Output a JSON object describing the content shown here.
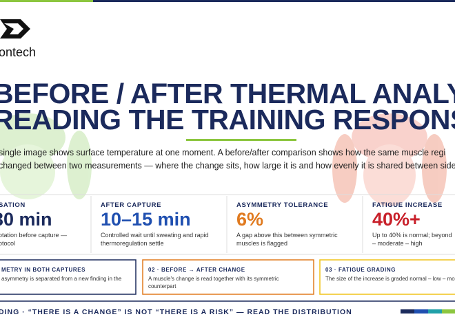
{
  "header": {
    "brand": "ontech"
  },
  "title": {
    "line1": "BEFORE / AFTER THERMAL ANALYSIS",
    "line2": "READING THE TRAINING RESPONSE"
  },
  "intro": {
    "line1": "single image shows surface temperature at one moment. A before/after comparison shows how the same muscle regi",
    "line2": "changed between two measurements — where the change sits, how large it is and how evenly it is shared between side"
  },
  "stats": [
    {
      "label": "SATION",
      "value": "30 min",
      "desc1": "otation before capture —",
      "desc2": "otocol"
    },
    {
      "label": "AFTER CAPTURE",
      "value": "10–15 min",
      "desc1": "Controlled wait until sweating and rapid",
      "desc2": "thermoregulation settle"
    },
    {
      "label": "ASYMMETRY TOLERANCE",
      "value": "6%",
      "desc1": "A gap above this between symmetric",
      "desc2": "muscles is flagged"
    },
    {
      "label": "FATIGUE INCREASE",
      "value": "40%+",
      "desc1": "Up to 40% is normal; beyond",
      "desc2": "– moderate – high"
    }
  ],
  "cards": [
    {
      "title": "METRY IN BOTH CAPTURES",
      "body1": "asymmetry is separated from a new finding in the",
      "body2": ""
    },
    {
      "title": "02 · BEFORE → AFTER CHANGE",
      "body1": "A muscle's change is read together with its symmetric",
      "body2": "counterpart"
    },
    {
      "title": "03 · FATIGUE GRADING",
      "body1": "The size of the increase is graded normal – low – mod",
      "body2": ""
    }
  ],
  "footer": {
    "text": "DING · “THERE IS A CHANGE” IS NOT “THERE IS A RISK” — READ THE DISTRIBUTION"
  }
}
